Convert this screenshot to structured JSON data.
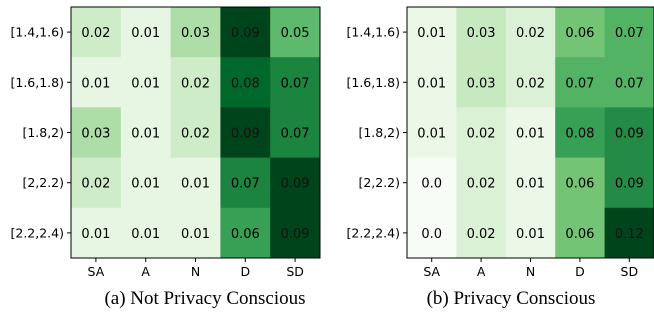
{
  "chart_data": [
    {
      "type": "heatmap",
      "title": "",
      "xlabel": "",
      "ylabel": "",
      "caption": "(a) Not Privacy Conscious",
      "x_categories": [
        "SA",
        "A",
        "N",
        "D",
        "SD"
      ],
      "y_categories": [
        "[1.4,1.6)",
        "[1.6,1.8)",
        "[1.8,2)",
        "[2,2.2)",
        "[2.2,2.4)"
      ],
      "values": [
        [
          0.02,
          0.01,
          0.03,
          0.09,
          0.05
        ],
        [
          0.01,
          0.01,
          0.02,
          0.08,
          0.07
        ],
        [
          0.03,
          0.01,
          0.02,
          0.09,
          0.07
        ],
        [
          0.02,
          0.01,
          0.01,
          0.07,
          0.09
        ],
        [
          0.01,
          0.01,
          0.01,
          0.06,
          0.09
        ]
      ],
      "value_labels": [
        [
          "0.02",
          "0.01",
          "0.03",
          "0.09",
          "0.05"
        ],
        [
          "0.01",
          "0.01",
          "0.02",
          "0.08",
          "0.07"
        ],
        [
          "0.03",
          "0.01",
          "0.02",
          "0.09",
          "0.07"
        ],
        [
          "0.02",
          "0.01",
          "0.01",
          "0.07",
          "0.09"
        ],
        [
          "0.01",
          "0.01",
          "0.01",
          "0.06",
          "0.09"
        ]
      ],
      "colormap": "Greens",
      "vmin": 0.0,
      "vmax": 0.09
    },
    {
      "type": "heatmap",
      "title": "",
      "xlabel": "",
      "ylabel": "",
      "caption": "(b) Privacy Conscious",
      "x_categories": [
        "SA",
        "A",
        "N",
        "D",
        "SD"
      ],
      "y_categories": [
        "[1.4,1.6)",
        "[1.6,1.8)",
        "[1.8,2)",
        "[2,2.2)",
        "[2.2,2.4)"
      ],
      "values": [
        [
          0.01,
          0.03,
          0.02,
          0.06,
          0.07
        ],
        [
          0.01,
          0.03,
          0.02,
          0.07,
          0.07
        ],
        [
          0.01,
          0.02,
          0.01,
          0.08,
          0.09
        ],
        [
          0.0,
          0.02,
          0.01,
          0.06,
          0.09
        ],
        [
          0.0,
          0.02,
          0.01,
          0.06,
          0.12
        ]
      ],
      "value_labels": [
        [
          "0.01",
          "0.03",
          "0.02",
          "0.06",
          "0.07"
        ],
        [
          "0.01",
          "0.03",
          "0.02",
          "0.07",
          "0.07"
        ],
        [
          "0.01",
          "0.02",
          "0.01",
          "0.08",
          "0.09"
        ],
        [
          "0.0",
          "0.02",
          "0.01",
          "0.06",
          "0.09"
        ],
        [
          "0.0",
          "0.02",
          "0.01",
          "0.06",
          "0.12"
        ]
      ],
      "colormap": "Greens",
      "vmin": 0.0,
      "vmax": 0.12
    }
  ]
}
